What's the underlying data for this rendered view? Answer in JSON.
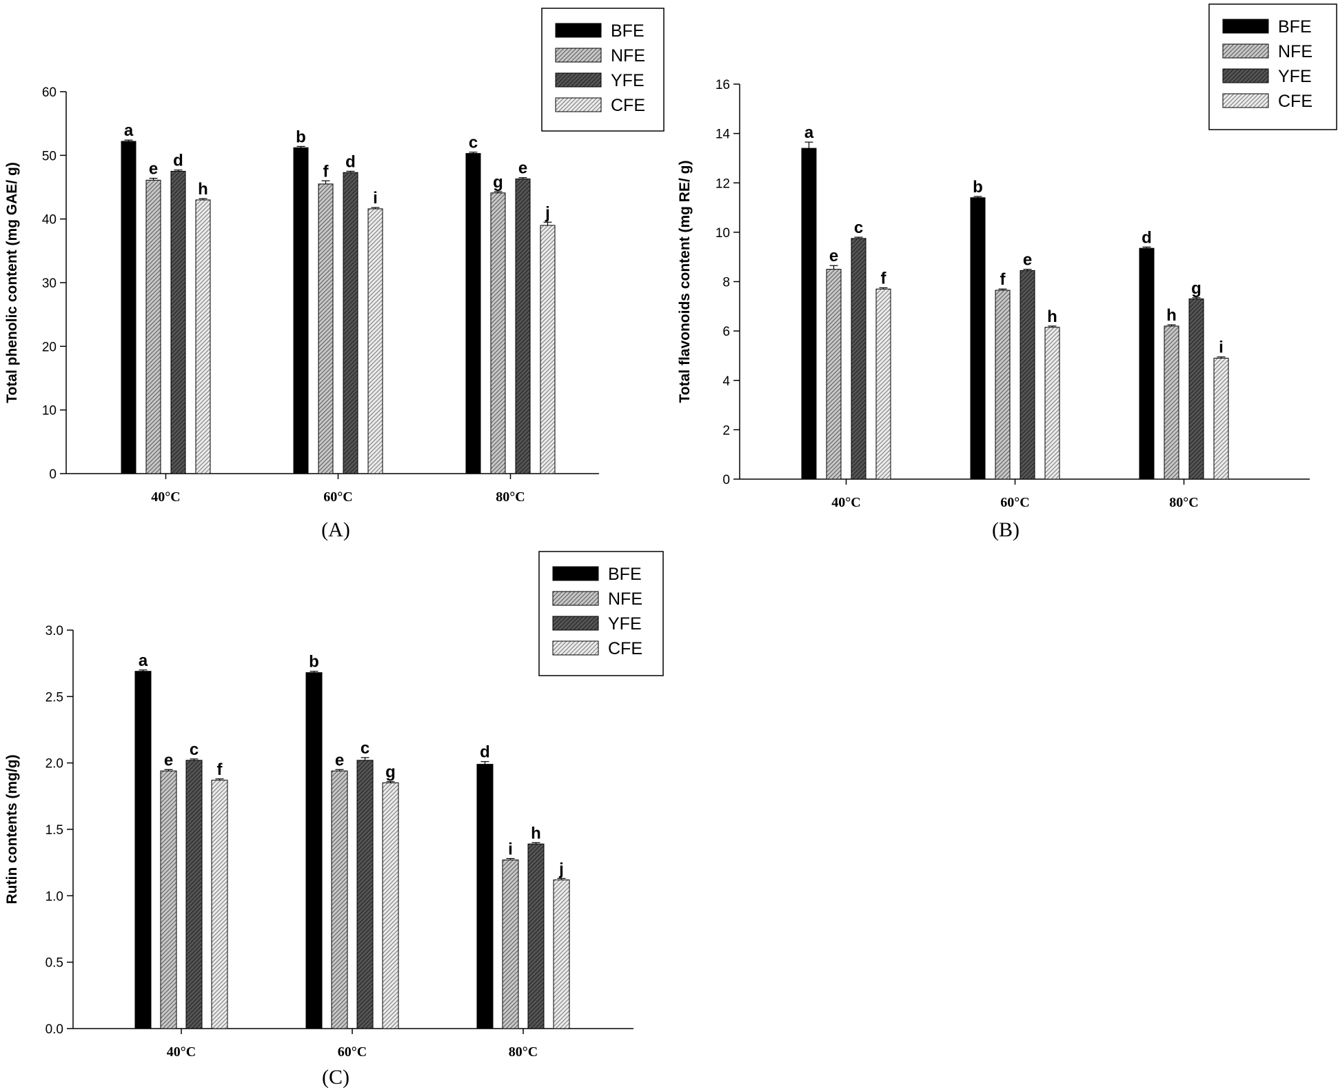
{
  "figure": {
    "panel_count": 3
  },
  "colors": {
    "BFE": "#000000",
    "NFE": "#c8c8c8",
    "YFE": "#555555",
    "CFE": "#e6e6e6",
    "axis": "#000000"
  },
  "chart_data": [
    {
      "type": "bar",
      "panel_label": "(A)",
      "title": "",
      "ylabel": "Total phenolic content (mg GAE/ g)",
      "xlabel": "",
      "categories": [
        "40°C",
        "60°C",
        "80°C"
      ],
      "ylim": [
        0,
        60
      ],
      "yticks": [
        0,
        10,
        20,
        30,
        40,
        50,
        60
      ],
      "ytick_labels": [
        "0",
        "10",
        "20",
        "30",
        "40",
        "50",
        "60"
      ],
      "legend": [
        "BFE",
        "NFE",
        "YFE",
        "CFE"
      ],
      "legend_position": "top-right",
      "series": [
        {
          "name": "BFE",
          "values": [
            52.2,
            51.2,
            50.3
          ],
          "errors": [
            0.2,
            0.2,
            0.2
          ],
          "letters": [
            "a",
            "b",
            "c"
          ]
        },
        {
          "name": "NFE",
          "values": [
            46.1,
            45.5,
            44.1
          ],
          "errors": [
            0.3,
            0.5,
            0.2
          ],
          "letters": [
            "e",
            "f",
            "g"
          ]
        },
        {
          "name": "YFE",
          "values": [
            47.5,
            47.3,
            46.3
          ],
          "errors": [
            0.2,
            0.2,
            0.2
          ],
          "letters": [
            "d",
            "d",
            "e"
          ]
        },
        {
          "name": "CFE",
          "values": [
            43.0,
            41.6,
            39.0
          ],
          "errors": [
            0.2,
            0.2,
            0.5
          ],
          "letters": [
            "h",
            "i",
            "j"
          ]
        }
      ]
    },
    {
      "type": "bar",
      "panel_label": "(B)",
      "title": "",
      "ylabel": "Total flavonoids content (mg RE/ g)",
      "xlabel": "",
      "categories": [
        "40°C",
        "60°C",
        "80°C"
      ],
      "ylim": [
        0,
        16
      ],
      "yticks": [
        0,
        2,
        4,
        6,
        8,
        10,
        12,
        14,
        16
      ],
      "ytick_labels": [
        "0",
        "2",
        "4",
        "6",
        "8",
        "10",
        "12",
        "14",
        "16"
      ],
      "legend": [
        "BFE",
        "NFE",
        "YFE",
        "CFE"
      ],
      "legend_position": "top-right",
      "series": [
        {
          "name": "BFE",
          "values": [
            13.4,
            11.4,
            9.35
          ],
          "errors": [
            0.25,
            0.05,
            0.05
          ],
          "letters": [
            "a",
            "b",
            "d"
          ]
        },
        {
          "name": "NFE",
          "values": [
            8.5,
            7.65,
            6.2
          ],
          "errors": [
            0.15,
            0.05,
            0.05
          ],
          "letters": [
            "e",
            "f",
            "h"
          ]
        },
        {
          "name": "YFE",
          "values": [
            9.75,
            8.45,
            7.3
          ],
          "errors": [
            0.05,
            0.05,
            0.05
          ],
          "letters": [
            "c",
            "e",
            "g"
          ]
        },
        {
          "name": "CFE",
          "values": [
            7.7,
            6.15,
            4.9
          ],
          "errors": [
            0.05,
            0.05,
            0.05
          ],
          "letters": [
            "f",
            "h",
            "i"
          ]
        }
      ]
    },
    {
      "type": "bar",
      "panel_label": "(C)",
      "title": "",
      "ylabel": "Rutin contents (mg/g)",
      "xlabel": "",
      "categories": [
        "40°C",
        "60°C",
        "80°C"
      ],
      "ylim": [
        0,
        3.0
      ],
      "yticks": [
        0,
        0.5,
        1.0,
        1.5,
        2.0,
        2.5,
        3.0
      ],
      "ytick_labels": [
        "0.0",
        "0.5",
        "1.0",
        "1.5",
        "2.0",
        "2.5",
        "3.0"
      ],
      "legend": [
        "BFE",
        "NFE",
        "YFE",
        "CFE"
      ],
      "legend_position": "top-right",
      "series": [
        {
          "name": "BFE",
          "values": [
            2.69,
            2.68,
            1.99
          ],
          "errors": [
            0.01,
            0.01,
            0.02
          ],
          "letters": [
            "a",
            "b",
            "d"
          ]
        },
        {
          "name": "NFE",
          "values": [
            1.94,
            1.94,
            1.27
          ],
          "errors": [
            0.01,
            0.01,
            0.01
          ],
          "letters": [
            "e",
            "e",
            "i"
          ]
        },
        {
          "name": "YFE",
          "values": [
            2.02,
            2.02,
            1.39
          ],
          "errors": [
            0.01,
            0.02,
            0.01
          ],
          "letters": [
            "c",
            "c",
            "h"
          ]
        },
        {
          "name": "CFE",
          "values": [
            1.87,
            1.85,
            1.12
          ],
          "errors": [
            0.01,
            0.01,
            0.01
          ],
          "letters": [
            "f",
            "g",
            "j"
          ]
        }
      ]
    }
  ]
}
